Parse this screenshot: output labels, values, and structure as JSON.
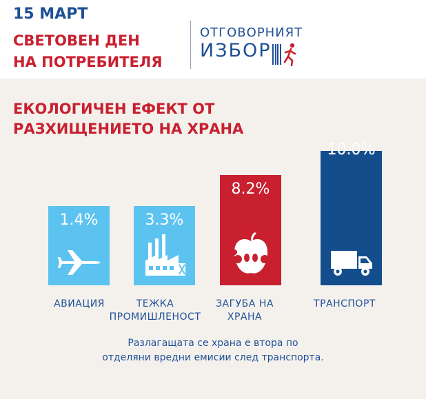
{
  "header": {
    "date": "15 МАРТ",
    "event_line1": "СВЕТОВЕН ДЕН",
    "event_line2": "НА ПОТРЕБИТЕЛЯ",
    "logo_line1": "ОТГОВОРНИЯТ",
    "logo_line2": "ИЗБОР"
  },
  "colors": {
    "brand_blue": "#1e4f96",
    "brand_red": "#c8202f",
    "light_blue": "#5cc3f0",
    "dark_blue": "#144d8c"
  },
  "chart_data": {
    "type": "bar",
    "title_line1": "ЕКОЛОГИЧЕН ЕФЕКТ ОТ",
    "title_line2": "РАЗХИЩЕНИЕТО НА ХРАНА",
    "categories": [
      "АВИАЦИЯ",
      "ТЕЖКА ПРОМИШЛЕНОСТ",
      "ЗАГУБА НА ХРАНА",
      "ТРАНСПОРТ"
    ],
    "category_lines": [
      [
        "АВИАЦИЯ"
      ],
      [
        "ТЕЖКА",
        "ПРОМИШЛЕНОСТ"
      ],
      [
        "ЗАГУБА НА",
        "ХРАНА"
      ],
      [
        "ТРАНСПОРТ"
      ]
    ],
    "values": [
      1.4,
      3.3,
      8.2,
      10.0
    ],
    "value_labels": [
      "1.4%",
      "3.3%",
      "8.2%",
      "10.0%"
    ],
    "bar_colors": [
      "#5cc3f0",
      "#5cc3f0",
      "#c8202f",
      "#144d8c"
    ],
    "icons": [
      "airplane-icon",
      "factory-icon",
      "apple-icon",
      "truck-icon"
    ],
    "ylim": [
      0,
      10
    ]
  },
  "caption": {
    "line1": "Разлагащата се храна е втора по",
    "line2": "отделяни вредни емисии  след транспорта."
  }
}
